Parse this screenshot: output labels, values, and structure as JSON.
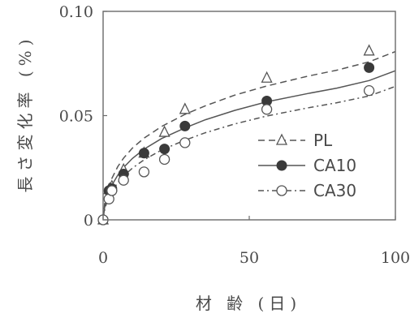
{
  "chart_data": {
    "type": "scatter",
    "title": "",
    "xlabel": "材 齢 (日)",
    "ylabel": "長さ変化率 (%)",
    "xlim": [
      0,
      100
    ],
    "ylim": [
      0,
      0.1
    ],
    "x_ticks": [
      "0",
      "50",
      "100"
    ],
    "y_ticks": [
      "0",
      "0.05",
      "0.10"
    ],
    "grid": false,
    "legend_position": "right-middle",
    "series": [
      {
        "name": "PL",
        "marker": "open-triangle",
        "line_style": "dashed",
        "color": "#555555",
        "x": [
          0,
          2,
          3,
          7,
          14,
          21,
          28,
          56,
          91
        ],
        "y": [
          0.0,
          0.0145,
          0.016,
          0.024,
          0.032,
          0.042,
          0.053,
          0.068,
          0.081
        ]
      },
      {
        "name": "CA10",
        "marker": "filled-circle",
        "line_style": "solid",
        "color": "#555555",
        "x": [
          0,
          2,
          3,
          7,
          14,
          21,
          28,
          56,
          91
        ],
        "y": [
          0.0,
          0.014,
          0.015,
          0.022,
          0.032,
          0.034,
          0.045,
          0.057,
          0.073
        ]
      },
      {
        "name": "CA30",
        "marker": "open-circle",
        "line_style": "dash-dot",
        "color": "#555555",
        "x": [
          0,
          2,
          3,
          7,
          14,
          21,
          28,
          56,
          91
        ],
        "y": [
          0.0,
          0.01,
          0.014,
          0.019,
          0.023,
          0.029,
          0.037,
          0.053,
          0.062
        ]
      }
    ],
    "fitted_curves": [
      {
        "series": "PL",
        "style": "dashed",
        "x": [
          0,
          0.5,
          1,
          2,
          3,
          5,
          7,
          10,
          14,
          20,
          28,
          35,
          45,
          56,
          70,
          80,
          91,
          100
        ],
        "y": [
          0,
          0.0075,
          0.0112,
          0.0163,
          0.0199,
          0.0255,
          0.0296,
          0.0344,
          0.0392,
          0.0448,
          0.0506,
          0.0547,
          0.0598,
          0.0642,
          0.0689,
          0.0718,
          0.0758,
          0.0807
        ]
      },
      {
        "series": "CA10",
        "style": "solid",
        "x": [
          0,
          0.5,
          1,
          2,
          3,
          5,
          7,
          10,
          14,
          20,
          28,
          35,
          45,
          56,
          70,
          80,
          91,
          100
        ],
        "y": [
          0,
          0.0058,
          0.0091,
          0.0135,
          0.0166,
          0.0214,
          0.0251,
          0.0294,
          0.0339,
          0.039,
          0.0441,
          0.048,
          0.0525,
          0.0566,
          0.0606,
          0.0632,
          0.0668,
          0.0715
        ]
      },
      {
        "series": "CA30",
        "style": "dash-dot",
        "x": [
          0,
          0.5,
          1,
          2,
          3,
          5,
          7,
          10,
          14,
          20,
          28,
          35,
          45,
          56,
          70,
          80,
          91,
          100
        ],
        "y": [
          0,
          0.0045,
          0.0072,
          0.0109,
          0.0136,
          0.0178,
          0.021,
          0.0248,
          0.0288,
          0.0335,
          0.0382,
          0.0418,
          0.046,
          0.0498,
          0.0537,
          0.0562,
          0.0594,
          0.064
        ]
      }
    ]
  }
}
